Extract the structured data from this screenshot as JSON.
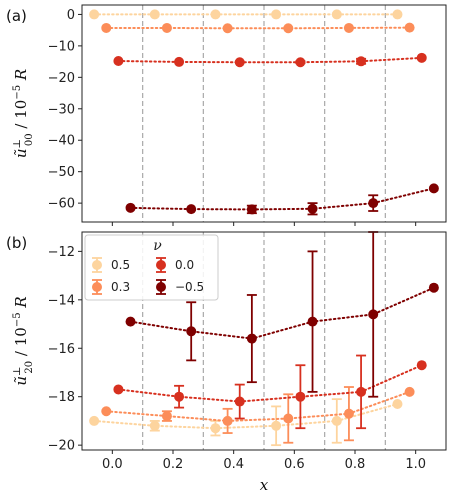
{
  "chart_data": [
    {
      "type": "scatter",
      "panel_label": "(a)",
      "ylabel": "ũ⊥00 / 10⁻⁵ R",
      "ylabel_base": "ũ",
      "ylabel_sup": "⊥",
      "ylabel_sub": "00",
      "ylabel_rest": " / 10",
      "ylabel_exp": "−5",
      "ylabel_unit": " R",
      "xlim": [
        -0.1,
        1.1
      ],
      "ylim": [
        -66,
        3
      ],
      "yticks": [
        0,
        -10,
        -20,
        -30,
        -40,
        -50,
        -60
      ],
      "ytick_labels": [
        "0",
        "−10",
        "−20",
        "−30",
        "−40",
        "−50",
        "−60"
      ],
      "vlines": [
        0.1,
        0.3,
        0.5,
        0.7,
        0.9
      ],
      "grid": false,
      "series": [
        {
          "name": "0.5",
          "color": "#fdd49e",
          "x": [
            -0.06,
            0.14,
            0.34,
            0.54,
            0.74,
            0.94
          ],
          "y": [
            0.0,
            0.0,
            0.0,
            0.0,
            0.0,
            0.0
          ],
          "err": [
            0,
            0,
            0,
            0,
            0,
            0
          ]
        },
        {
          "name": "0.3",
          "color": "#fc8d59",
          "x": [
            -0.02,
            0.18,
            0.38,
            0.58,
            0.78,
            0.98
          ],
          "y": [
            -4.3,
            -4.3,
            -4.4,
            -4.4,
            -4.3,
            -4.2
          ],
          "err": [
            0,
            0,
            0,
            0,
            0,
            0
          ]
        },
        {
          "name": "0.0",
          "color": "#d7301f",
          "x": [
            0.02,
            0.22,
            0.42,
            0.62,
            0.82,
            1.02
          ],
          "y": [
            -14.8,
            -15.1,
            -15.2,
            -15.2,
            -14.9,
            -13.8
          ],
          "err": [
            0,
            0,
            0,
            0.3,
            0.8,
            0
          ]
        },
        {
          "name": "−0.5",
          "color": "#7f0000",
          "x": [
            0.06,
            0.26,
            0.46,
            0.66,
            0.86,
            1.06
          ],
          "y": [
            -61.5,
            -61.9,
            -62.0,
            -61.8,
            -60.0,
            -55.3
          ],
          "err": [
            0,
            0,
            1.2,
            1.8,
            2.5,
            0
          ]
        }
      ]
    },
    {
      "type": "scatter",
      "panel_label": "(b)",
      "xlabel": "x",
      "ylabel": "ũ⊥20 / 10⁻⁵ R",
      "ylabel_base": "ũ",
      "ylabel_sup": "⊥",
      "ylabel_sub": "20",
      "ylabel_rest": " / 10",
      "ylabel_exp": "−5",
      "ylabel_unit": " R",
      "xlim": [
        -0.1,
        1.1
      ],
      "ylim": [
        -20.2,
        -11.2
      ],
      "yticks": [
        -12,
        -14,
        -16,
        -18,
        -20
      ],
      "ytick_labels": [
        "−12",
        "−14",
        "−16",
        "−18",
        "−20"
      ],
      "xticks": [
        0.0,
        0.2,
        0.4,
        0.6,
        0.8,
        1.0
      ],
      "xtick_labels": [
        "0.0",
        "0.2",
        "0.4",
        "0.6",
        "0.8",
        "1.0"
      ],
      "vlines": [
        0.1,
        0.3,
        0.5,
        0.7,
        0.9
      ],
      "grid": false,
      "legend": {
        "title": "ν",
        "placement": "top-left",
        "columns": 2
      },
      "series": [
        {
          "name": "0.5",
          "color": "#fdd49e",
          "x": [
            -0.06,
            0.14,
            0.34,
            0.54,
            0.74,
            0.94
          ],
          "y": [
            -19.0,
            -19.2,
            -19.3,
            -19.2,
            -19.0,
            -18.3
          ],
          "err": [
            0,
            0.2,
            0.3,
            0.8,
            0.9,
            0
          ]
        },
        {
          "name": "0.3",
          "color": "#fc8d59",
          "x": [
            -0.02,
            0.18,
            0.38,
            0.58,
            0.78,
            0.98
          ],
          "y": [
            -18.6,
            -18.8,
            -19.0,
            -18.9,
            -18.7,
            -17.8
          ],
          "err": [
            0,
            0.2,
            0.5,
            1.0,
            1.1,
            0
          ]
        },
        {
          "name": "0.0",
          "color": "#d7301f",
          "x": [
            0.02,
            0.22,
            0.42,
            0.62,
            0.82,
            1.02
          ],
          "y": [
            -17.7,
            -18.0,
            -18.2,
            -18.0,
            -17.8,
            -16.7
          ],
          "err": [
            0,
            0.45,
            0.7,
            1.3,
            1.5,
            0
          ]
        },
        {
          "name": "−0.5",
          "color": "#7f0000",
          "x": [
            0.06,
            0.26,
            0.46,
            0.66,
            0.86,
            1.06
          ],
          "y": [
            -14.9,
            -15.3,
            -15.6,
            -14.9,
            -14.6,
            -13.5
          ],
          "err": [
            0,
            1.2,
            1.8,
            2.9,
            3.4,
            0
          ]
        }
      ]
    }
  ]
}
